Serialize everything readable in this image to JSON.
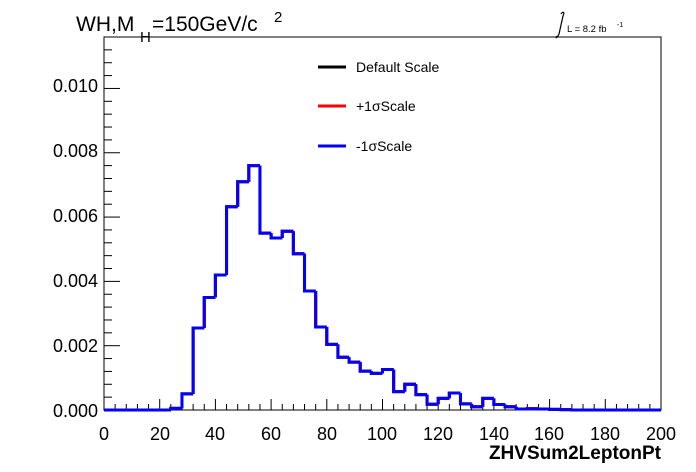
{
  "chart_data": {
    "type": "histogram",
    "title": "WH,M",
    "title_sub": "H",
    "title_mass": "=150GeV/c",
    "title_sup": "2",
    "lumi_prefix": "L = 8.2 fb",
    "lumi_sup": "-1",
    "xlabel": "ZHVSum2LeptonPt",
    "xlim": [
      0,
      200
    ],
    "ylim": [
      0,
      0.0116
    ],
    "x_ticks": [
      "0",
      "20",
      "40",
      "60",
      "80",
      "100",
      "120",
      "140",
      "160",
      "180",
      "200"
    ],
    "y_ticks": [
      "0.000",
      "0.002",
      "0.004",
      "0.006",
      "0.008",
      "0.010"
    ],
    "grid": false,
    "legend_position": "top-center",
    "legend": [
      {
        "label": "Default Scale",
        "color": "#000000"
      },
      {
        "label": "+1σScale",
        "color": "#ff0000"
      },
      {
        "label": "-1σScale",
        "color": "#0000ff"
      }
    ],
    "bin_width": 4,
    "bin_low_edges": [
      0,
      4,
      8,
      12,
      16,
      20,
      24,
      28,
      32,
      36,
      40,
      44,
      48,
      52,
      56,
      60,
      64,
      68,
      72,
      76,
      80,
      84,
      88,
      92,
      96,
      100,
      104,
      108,
      112,
      116,
      120,
      124,
      128,
      132,
      136,
      140,
      144,
      148,
      152,
      156,
      160,
      164,
      168,
      172,
      176,
      180,
      184,
      188,
      192,
      196
    ],
    "series": [
      {
        "name": "Default Scale",
        "color": "#000000",
        "values": [
          0,
          0,
          0,
          0,
          0,
          0,
          5e-05,
          0.0005,
          0.00255,
          0.0035,
          0.0042,
          0.00632,
          0.0071,
          0.0076,
          0.0055,
          0.00535,
          0.00556,
          0.00486,
          0.0037,
          0.00258,
          0.00204,
          0.00164,
          0.00149,
          0.00121,
          0.00114,
          0.00126,
          0.00057,
          0.0008,
          0.00048,
          0.00018,
          0.00036,
          0.00053,
          0.00019,
          0.0001,
          0.00036,
          0.00017,
          0.0001,
          3e-05,
          4e-05,
          3e-05,
          2e-05,
          1e-05,
          0,
          0,
          0,
          0,
          0,
          0,
          0,
          0
        ]
      },
      {
        "name": "+1σScale",
        "color": "#ff0000",
        "values": [
          0,
          0,
          0,
          0,
          0,
          0,
          5e-05,
          0.0005,
          0.00255,
          0.0035,
          0.0042,
          0.00632,
          0.0071,
          0.0076,
          0.0055,
          0.00535,
          0.00556,
          0.00486,
          0.0037,
          0.00258,
          0.00204,
          0.00164,
          0.00149,
          0.00121,
          0.00114,
          0.00126,
          0.00057,
          0.0008,
          0.00048,
          0.00018,
          0.00036,
          0.00053,
          0.00019,
          0.0001,
          0.00036,
          0.00017,
          0.0001,
          3e-05,
          4e-05,
          3e-05,
          2e-05,
          1e-05,
          0,
          0,
          0,
          0,
          0,
          0,
          0,
          0
        ]
      },
      {
        "name": "-1σScale",
        "color": "#0000ff",
        "values": [
          0,
          0,
          0,
          0,
          0,
          0,
          5e-05,
          0.0005,
          0.00255,
          0.0035,
          0.0042,
          0.00632,
          0.0071,
          0.0076,
          0.0055,
          0.00535,
          0.00556,
          0.00486,
          0.0037,
          0.00258,
          0.00204,
          0.00164,
          0.00149,
          0.00121,
          0.00114,
          0.00126,
          0.00057,
          0.0008,
          0.00048,
          0.00018,
          0.00036,
          0.00053,
          0.00019,
          0.0001,
          0.00036,
          0.00017,
          0.0001,
          3e-05,
          4e-05,
          3e-05,
          2e-05,
          1e-05,
          0,
          0,
          0,
          0,
          0,
          0,
          0,
          0
        ]
      }
    ]
  }
}
